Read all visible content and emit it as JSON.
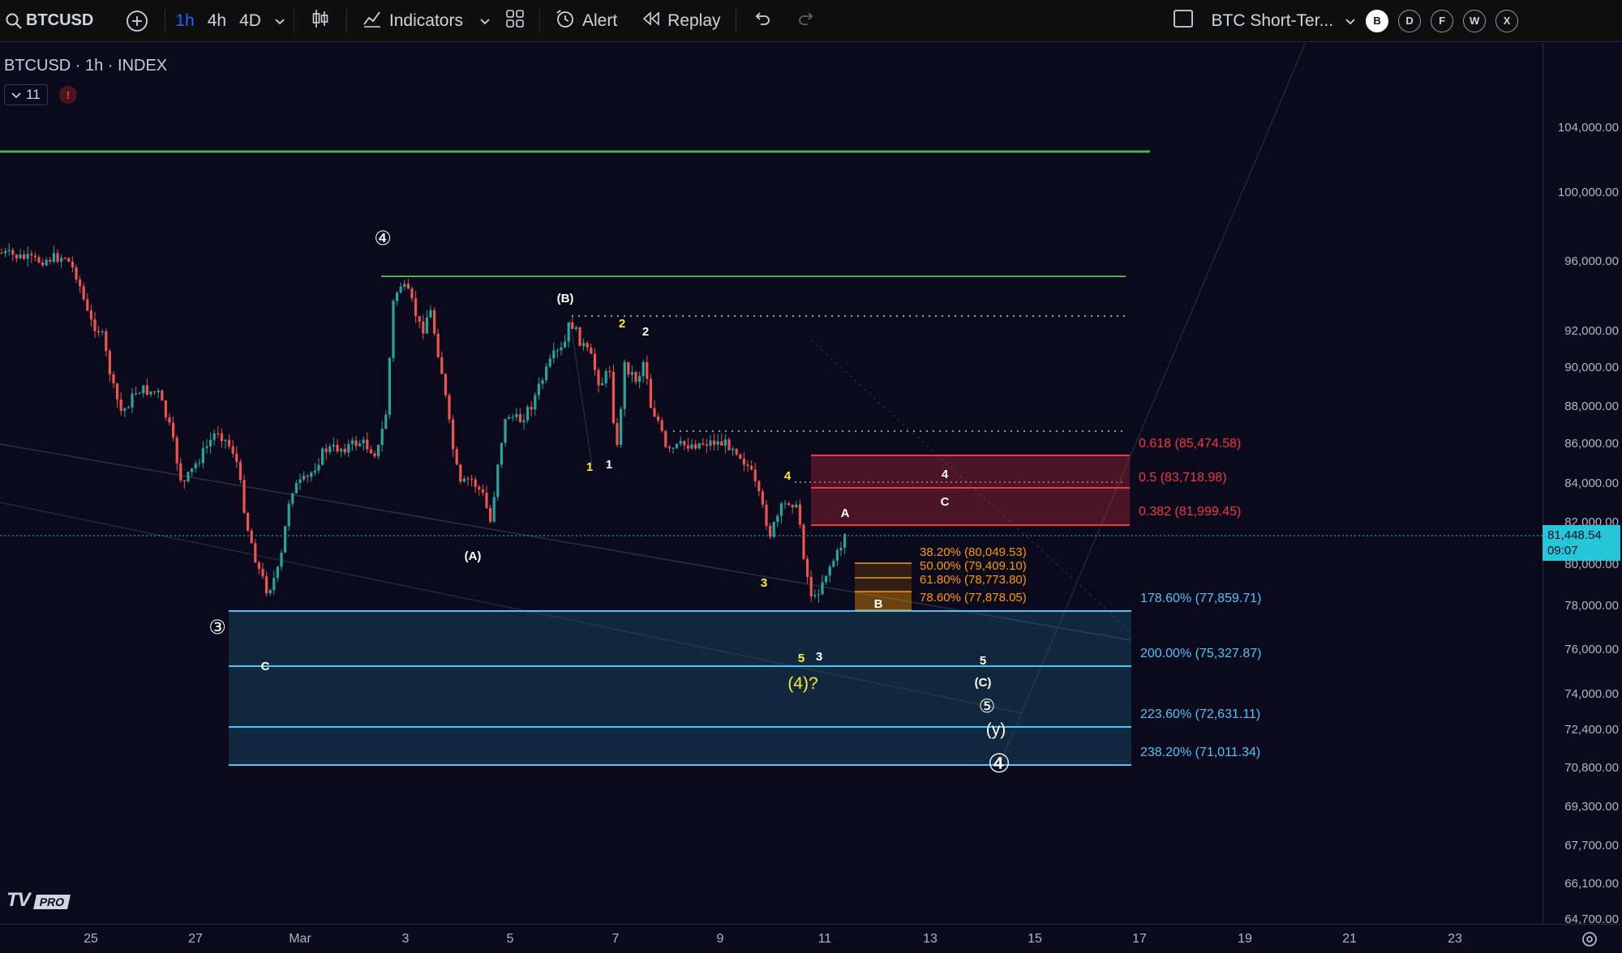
{
  "toolbar": {
    "symbol": "BTCUSD",
    "timeframes": [
      "1h",
      "4h",
      "4D"
    ],
    "indicators_label": "Indicators",
    "alert_label": "Alert",
    "replay_label": "Replay",
    "layout_name": "BTC Short-Ter...",
    "quick_buttons": [
      "B",
      "D",
      "F",
      "W",
      "X"
    ]
  },
  "chart_header": {
    "title": "BTCUSD · 1h · INDEX",
    "indicator_count": "11",
    "alert_mark": "!"
  },
  "price_axis": {
    "ticks": [
      "104,000.00",
      "100,000.00",
      "96,000.00",
      "92,000.00",
      "90,000.00",
      "88,000.00",
      "86,000.00",
      "84,000.00",
      "82,000.00",
      "80,000.00",
      "78,000.00",
      "76,000.00",
      "74,000.00",
      "72,400.00",
      "70,800.00",
      "69,300.00",
      "67,700.00",
      "66,100.00",
      "64,700.00"
    ],
    "current_price": "81,448.54",
    "countdown": "09:07"
  },
  "time_axis": {
    "ticks": [
      "25",
      "27",
      "Mar",
      "3",
      "5",
      "7",
      "9",
      "11",
      "13",
      "15",
      "17",
      "19",
      "21",
      "23"
    ]
  },
  "fib_retracement_upper": {
    "levels": [
      "0.618 (85,474.58)",
      "0.5 (83,718.98)",
      "0.382 (81,999.45)"
    ],
    "color": "#f23645"
  },
  "fib_retracement_lower": {
    "levels": [
      "38.20% (80,049.53)",
      "50.00% (79,409.10)",
      "61.80% (78,773.80)",
      "78.60% (77,878.05)"
    ],
    "color": "#ff9800"
  },
  "fib_extension": {
    "levels": [
      "178.60% (77,859.71)",
      "200.00% (75,327.87)",
      "223.60% (72,631.11)",
      "238.20% (71,011.34)"
    ],
    "color": "#4fc3f7"
  },
  "wave_labels": {
    "circled_4_top": "④",
    "circled_3": "③",
    "B_paren": "(B)",
    "A_paren": "(A)",
    "wave_2_yellow": "2",
    "wave_2_white": "2",
    "wave_1_yellow": "1",
    "wave_1_white": "1",
    "wave_4_yellow": "4",
    "wave_3_yellow": "3",
    "wave_5_yellow": "5",
    "wave_3_white": "3",
    "wave_4_proj": "4",
    "wave_C_proj": "C",
    "wave_A": "A",
    "wave_B": "B",
    "wave_C_left": "C",
    "wave_4_question": "(4)?",
    "wave_5_proj": "5",
    "wave_C_paren": "(C)",
    "circled_5": "⑤",
    "y_paren": "(y)",
    "circled_4_bottom": "④"
  },
  "branding": {
    "logo": "TV",
    "plan": "PRO"
  },
  "colors": {
    "up_candle": "#26a69a",
    "down_candle": "#ef5350",
    "green_line": "#4caf50",
    "accent": "#2962ff"
  }
}
